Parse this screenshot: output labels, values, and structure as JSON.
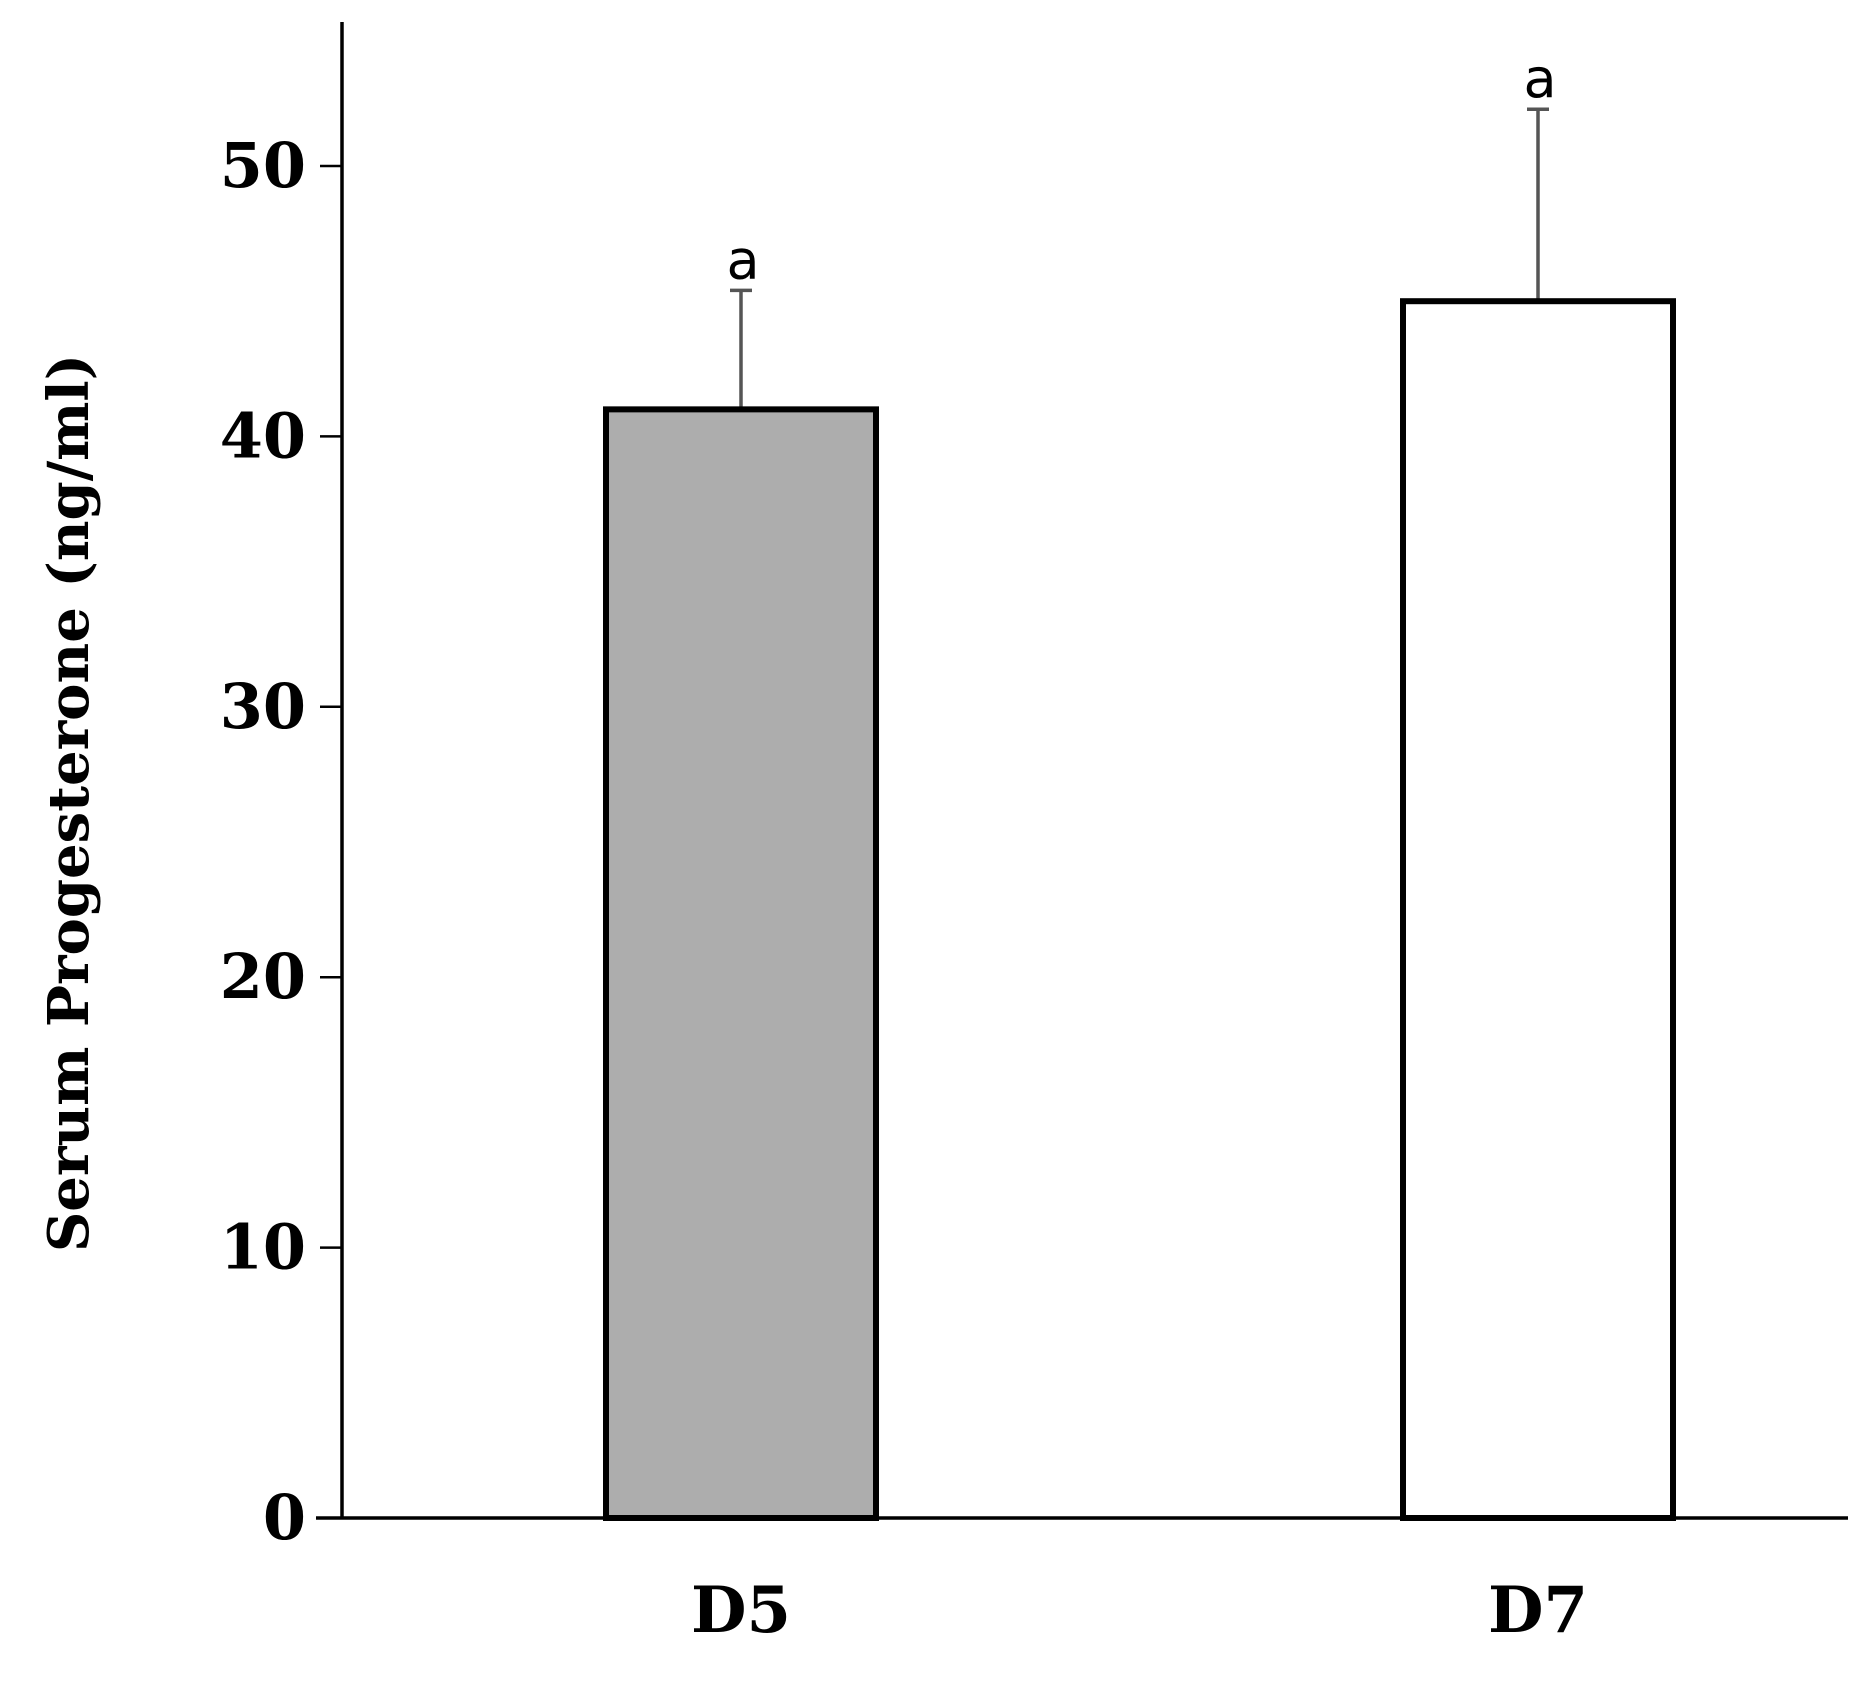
{
  "chart_data": {
    "type": "bar",
    "title": "",
    "xlabel": "",
    "ylabel": "Serum Progesterone (ng/ml)",
    "ylim": [
      0,
      55
    ],
    "yticks": [
      0,
      10,
      20,
      30,
      40,
      50
    ],
    "categories": [
      "D5",
      "D7"
    ],
    "values": [
      41,
      45
    ],
    "error_upper": [
      4.4,
      7.1
    ],
    "significance_labels": [
      "a",
      "a"
    ],
    "bar_colors": [
      "#adadad",
      "#ffffff"
    ],
    "grid": false,
    "legend": "none"
  }
}
